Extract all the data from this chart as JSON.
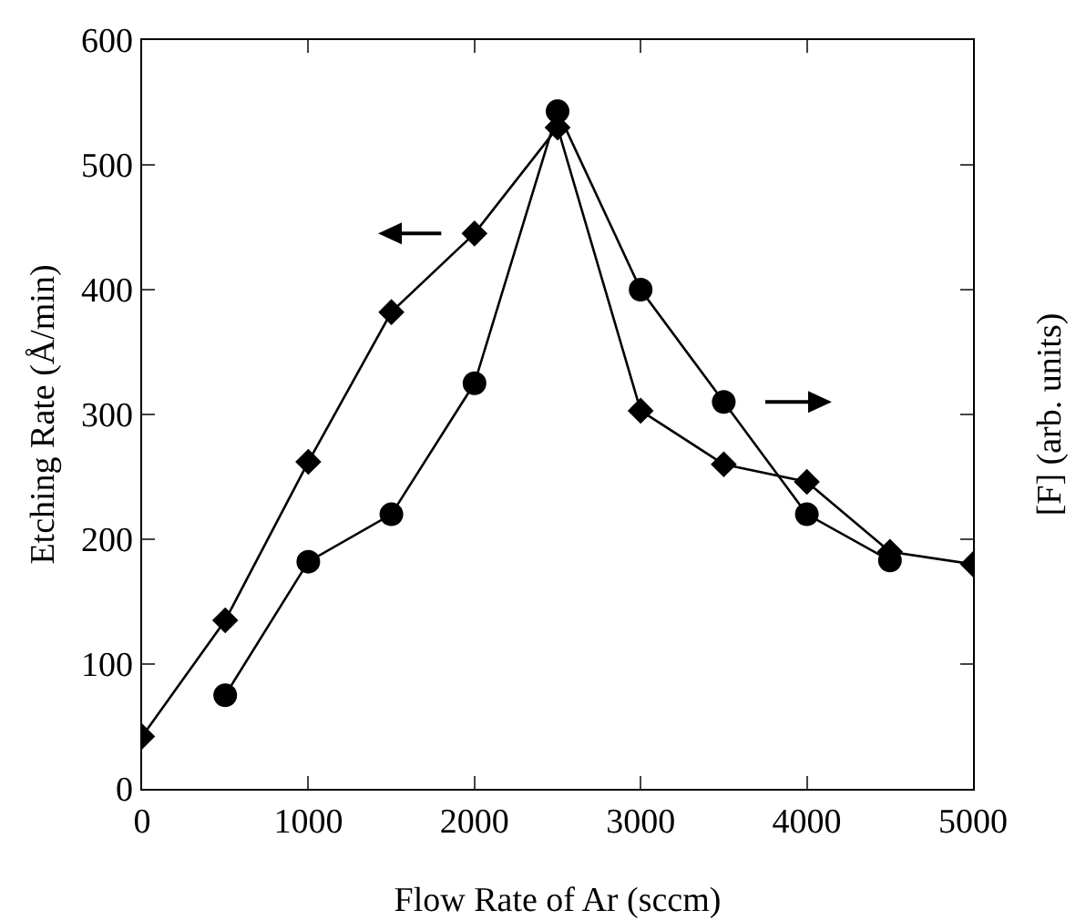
{
  "chart_data": {
    "type": "line",
    "xlabel": "Flow Rate of Ar (sccm)",
    "ylabel": "Etching Rate (Å/min)",
    "y2label": "[F] (arb. units)",
    "xlim": [
      0,
      5000
    ],
    "xticks": [
      0,
      1000,
      2000,
      3000,
      4000,
      5000
    ],
    "ylim": [
      0,
      600
    ],
    "yticks": [
      0,
      100,
      200,
      300,
      400,
      500,
      600
    ],
    "grid": false,
    "line_style": "solid",
    "series": [
      {
        "color": "#000000",
        "marker": "diamond",
        "x": [
          0,
          500,
          1000,
          1500,
          2000,
          2500,
          3000,
          3500,
          4000,
          4500,
          5000
        ],
        "values": [
          42,
          135,
          262,
          382,
          445,
          530,
          303,
          260,
          246,
          190,
          180
        ]
      },
      {
        "color": "#000000",
        "marker": "circle",
        "x": [
          500,
          1000,
          1500,
          2000,
          2500,
          3000,
          3500,
          4000,
          4500
        ],
        "values": [
          75,
          182,
          220,
          325,
          543,
          400,
          310,
          220,
          183
        ]
      }
    ]
  }
}
